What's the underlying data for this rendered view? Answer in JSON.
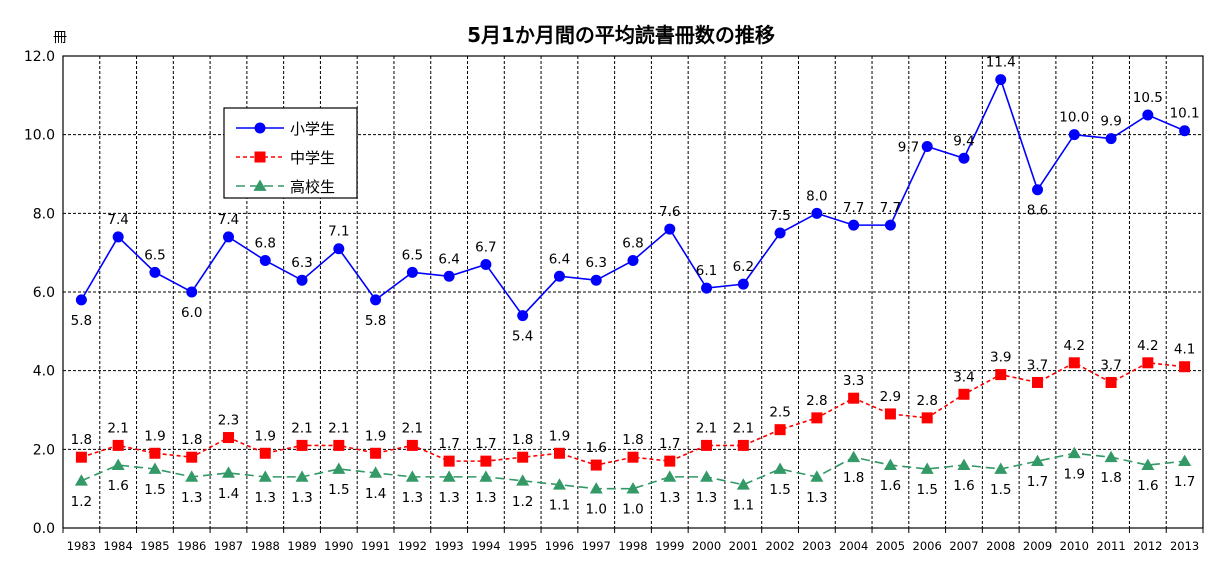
{
  "chart_data": {
    "type": "line",
    "title": "5月1か月間の平均読書冊数の推移",
    "ylabel": "冊",
    "ylim": [
      0,
      12
    ],
    "yticks": [
      "0.0",
      "2.0",
      "4.0",
      "6.0",
      "8.0",
      "10.0",
      "12.0"
    ],
    "grid": true,
    "legend_position": "top-left",
    "categories": [
      "1983",
      "1984",
      "1985",
      "1986",
      "1987",
      "1988",
      "1989",
      "1990",
      "1991",
      "1992",
      "1993",
      "1994",
      "1995",
      "1996",
      "1997",
      "1998",
      "1999",
      "2000",
      "2001",
      "2002",
      "2003",
      "2004",
      "2005",
      "2006",
      "2007",
      "2008",
      "2009",
      "2010",
      "2011",
      "2012",
      "2013"
    ],
    "series": [
      {
        "name": "小学生",
        "color": "#0000ff",
        "marker": "circle",
        "dash": "solid",
        "values": [
          5.8,
          7.4,
          6.5,
          6.0,
          7.4,
          6.8,
          6.3,
          7.1,
          5.8,
          6.5,
          6.4,
          6.7,
          5.4,
          6.4,
          6.3,
          6.8,
          7.6,
          6.1,
          6.2,
          7.5,
          8.0,
          7.7,
          7.7,
          9.7,
          9.4,
          11.4,
          8.6,
          10.0,
          9.9,
          10.5,
          10.1
        ],
        "labels": [
          "5.8",
          "7.4",
          "6.5",
          "6.0",
          "7.4",
          "6.8",
          "6.3",
          "7.1",
          "5.8",
          "6.5",
          "6.4",
          "6.7",
          "5.4",
          "6.4",
          "6.3",
          "6.8",
          "7.6",
          "6.1",
          "6.2",
          "7.5",
          "8.0",
          "7.7",
          "7.7",
          "9.7",
          "9.4",
          "11.4",
          "8.6",
          "10.0",
          "9.9",
          "10.5",
          "10.1"
        ],
        "label_pos": [
          "b",
          "a",
          "a",
          "b",
          "a",
          "a",
          "a",
          "a",
          "b",
          "a",
          "a",
          "a",
          "b",
          "a",
          "a",
          "a",
          "a",
          "a",
          "a",
          "a",
          "a",
          "a",
          "a",
          "l",
          "a",
          "a",
          "b",
          "a",
          "a",
          "a",
          "a"
        ]
      },
      {
        "name": "中学生",
        "color": "#ff0000",
        "marker": "square",
        "dash": "short",
        "values": [
          1.8,
          2.1,
          1.9,
          1.8,
          2.3,
          1.9,
          2.1,
          2.1,
          1.9,
          2.1,
          1.7,
          1.7,
          1.8,
          1.9,
          1.6,
          1.8,
          1.7,
          2.1,
          2.1,
          2.5,
          2.8,
          3.3,
          2.9,
          2.8,
          3.4,
          3.9,
          3.7,
          4.2,
          3.7,
          4.2,
          4.1
        ],
        "labels": [
          "1.8",
          "2.1",
          "1.9",
          "1.8",
          "2.3",
          "1.9",
          "2.1",
          "2.1",
          "1.9",
          "2.1",
          "1.7",
          "1.7",
          "1.8",
          "1.9",
          "1.6",
          "1.8",
          "1.7",
          "2.1",
          "2.1",
          "2.5",
          "2.8",
          "3.3",
          "2.9",
          "2.8",
          "3.4",
          "3.9",
          "3.7",
          "4.2",
          "3.7",
          "4.2",
          "4.1"
        ],
        "label_pos": [
          "a",
          "a",
          "a",
          "a",
          "a",
          "a",
          "a",
          "a",
          "a",
          "a",
          "a",
          "a",
          "a",
          "a",
          "a",
          "a",
          "a",
          "a",
          "a",
          "a",
          "a",
          "a",
          "a",
          "a",
          "a",
          "a",
          "a",
          "a",
          "a",
          "a",
          "a"
        ]
      },
      {
        "name": "高校生",
        "color": "#339966",
        "marker": "triangle",
        "dash": "long",
        "values": [
          1.2,
          1.6,
          1.5,
          1.3,
          1.4,
          1.3,
          1.3,
          1.5,
          1.4,
          1.3,
          1.3,
          1.3,
          1.2,
          1.1,
          1.0,
          1.0,
          1.3,
          1.3,
          1.1,
          1.5,
          1.3,
          1.8,
          1.6,
          1.5,
          1.6,
          1.5,
          1.7,
          1.9,
          1.8,
          1.6,
          1.7
        ],
        "labels": [
          "1.2",
          "1.6",
          "1.5",
          "1.3",
          "1.4",
          "1.3",
          "1.3",
          "1.5",
          "1.4",
          "1.3",
          "1.3",
          "1.3",
          "1.2",
          "1.1",
          "1.0",
          "1.0",
          "1.3",
          "1.3",
          "1.1",
          "1.5",
          "1.3",
          "1.8",
          "1.6",
          "1.5",
          "1.6",
          "1.5",
          "1.7",
          "1.9",
          "1.8",
          "1.6",
          "1.7"
        ],
        "label_pos": [
          "b",
          "b",
          "b",
          "b",
          "b",
          "b",
          "b",
          "b",
          "b",
          "b",
          "b",
          "b",
          "b",
          "b",
          "b",
          "b",
          "b",
          "b",
          "b",
          "b",
          "b",
          "b",
          "b",
          "b",
          "b",
          "b",
          "b",
          "b",
          "b",
          "b",
          "b"
        ]
      }
    ]
  }
}
